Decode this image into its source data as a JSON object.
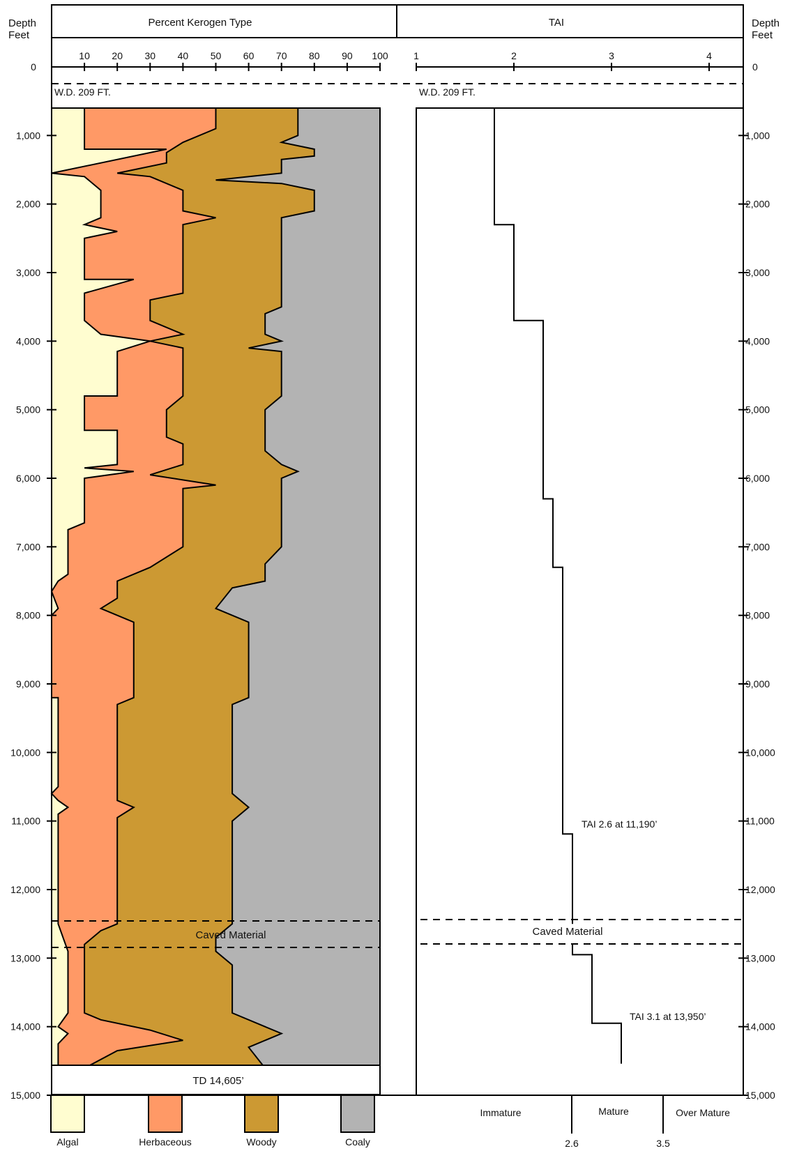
{
  "header": {
    "depth_label_line1": "Depth",
    "depth_label_line2": "Feet",
    "kerogen_title": "Percent Kerogen Type",
    "tai_title": "TAI"
  },
  "annotations": {
    "wd_left": "W.D. 209 FT.",
    "wd_right": "W.D. 209 FT.",
    "caved_left": "Caved Material",
    "caved_right": "Caved Material",
    "td": "TD 14,605’",
    "tai_26": "TAI 2.6 at 11,190’",
    "tai_31": "TAI 3.1 at 13,950’"
  },
  "maturity": {
    "labels": [
      "Immature",
      "Mature",
      "Over Mature"
    ],
    "thresholds": [
      "2.6",
      "3.5"
    ]
  },
  "legend": [
    {
      "label": "Algal",
      "color": "#FFFDD0"
    },
    {
      "label": "Herbaceous",
      "color": "#FF9966"
    },
    {
      "label": "Woody",
      "color": "#CC9933"
    },
    {
      "label": "Coaly",
      "color": "#B3B3B3"
    }
  ],
  "chart_data": [
    {
      "type": "area",
      "title": "Percent Kerogen Type",
      "ylabel": "Depth Feet",
      "stacked": true,
      "x_ticks": [
        "10",
        "20",
        "30",
        "40",
        "50",
        "60",
        "70",
        "80",
        "90",
        "100"
      ],
      "xlim": [
        0,
        100
      ],
      "y_ticks": [
        "0",
        "1,000",
        "2,000",
        "3,000",
        "4,000",
        "5,000",
        "6,000",
        "7,000",
        "8,000",
        "9,000",
        "10,000",
        "11,000",
        "12,000",
        "13,000",
        "14,000",
        "15,000"
      ],
      "ylim": [
        0,
        15000
      ],
      "depth_range": [
        600,
        14605
      ],
      "series": [
        {
          "name": "Algal",
          "color": "#FFFDD0",
          "points": [
            [
              600,
              10
            ],
            [
              1200,
              10
            ],
            [
              1200,
              35
            ],
            [
              1550,
              0
            ],
            [
              1600,
              10
            ],
            [
              1800,
              15
            ],
            [
              2200,
              15
            ],
            [
              2300,
              10
            ],
            [
              2400,
              20
            ],
            [
              2500,
              10
            ],
            [
              3100,
              10
            ],
            [
              3100,
              25
            ],
            [
              3300,
              10
            ],
            [
              3700,
              10
            ],
            [
              3900,
              15
            ],
            [
              4000,
              30
            ],
            [
              4150,
              20
            ],
            [
              4800,
              20
            ],
            [
              4800,
              10
            ],
            [
              5300,
              10
            ],
            [
              5300,
              20
            ],
            [
              5800,
              20
            ],
            [
              5850,
              10
            ],
            [
              5900,
              25
            ],
            [
              6000,
              10
            ],
            [
              6650,
              10
            ],
            [
              6750,
              5
            ],
            [
              7400,
              5
            ],
            [
              7500,
              2
            ],
            [
              7650,
              0
            ],
            [
              7900,
              2
            ],
            [
              8000,
              0
            ],
            [
              9200,
              0
            ],
            [
              9200,
              2
            ],
            [
              10500,
              2
            ],
            [
              10600,
              0
            ],
            [
              10700,
              2
            ],
            [
              10800,
              5
            ],
            [
              10900,
              2
            ],
            [
              12500,
              2
            ],
            [
              12900,
              5
            ],
            [
              13100,
              5
            ],
            [
              13800,
              5
            ],
            [
              14000,
              2
            ],
            [
              14100,
              5
            ],
            [
              14250,
              2
            ],
            [
              14605,
              2
            ]
          ]
        },
        {
          "name": "Herbaceous",
          "color": "#FF9966",
          "points": [
            [
              600,
              50
            ],
            [
              900,
              50
            ],
            [
              1100,
              40
            ],
            [
              1250,
              35
            ],
            [
              1400,
              35
            ],
            [
              1500,
              25
            ],
            [
              1550,
              20
            ],
            [
              1600,
              30
            ],
            [
              1800,
              40
            ],
            [
              2100,
              40
            ],
            [
              2200,
              50
            ],
            [
              2300,
              40
            ],
            [
              2500,
              40
            ],
            [
              3300,
              40
            ],
            [
              3400,
              30
            ],
            [
              3700,
              30
            ],
            [
              3900,
              40
            ],
            [
              4000,
              30
            ],
            [
              4100,
              40
            ],
            [
              4800,
              40
            ],
            [
              5000,
              35
            ],
            [
              5400,
              35
            ],
            [
              5500,
              40
            ],
            [
              5800,
              40
            ],
            [
              5950,
              30
            ],
            [
              6100,
              50
            ],
            [
              6150,
              40
            ],
            [
              7000,
              40
            ],
            [
              7300,
              30
            ],
            [
              7500,
              20
            ],
            [
              7750,
              20
            ],
            [
              7900,
              15
            ],
            [
              8100,
              25
            ],
            [
              9200,
              25
            ],
            [
              9300,
              20
            ],
            [
              10700,
              20
            ],
            [
              10800,
              25
            ],
            [
              10950,
              20
            ],
            [
              12500,
              20
            ],
            [
              12600,
              15
            ],
            [
              12800,
              10
            ],
            [
              12900,
              10
            ],
            [
              13100,
              10
            ],
            [
              13800,
              10
            ],
            [
              13900,
              15
            ],
            [
              14050,
              30
            ],
            [
              14200,
              40
            ],
            [
              14350,
              20
            ],
            [
              14605,
              10
            ]
          ]
        },
        {
          "name": "Woody",
          "color": "#CC9933",
          "points": [
            [
              600,
              75
            ],
            [
              1000,
              75
            ],
            [
              1100,
              70
            ],
            [
              1200,
              80
            ],
            [
              1300,
              80
            ],
            [
              1350,
              70
            ],
            [
              1550,
              70
            ],
            [
              1650,
              50
            ],
            [
              1700,
              70
            ],
            [
              1800,
              80
            ],
            [
              2100,
              80
            ],
            [
              2200,
              70
            ],
            [
              2400,
              70
            ],
            [
              2500,
              70
            ],
            [
              3500,
              70
            ],
            [
              3600,
              65
            ],
            [
              3900,
              65
            ],
            [
              4000,
              70
            ],
            [
              4100,
              60
            ],
            [
              4150,
              70
            ],
            [
              4800,
              70
            ],
            [
              5000,
              65
            ],
            [
              5600,
              65
            ],
            [
              5800,
              70
            ],
            [
              5900,
              75
            ],
            [
              6000,
              70
            ],
            [
              7000,
              70
            ],
            [
              7250,
              65
            ],
            [
              7500,
              65
            ],
            [
              7600,
              55
            ],
            [
              7900,
              50
            ],
            [
              8100,
              60
            ],
            [
              9200,
              60
            ],
            [
              9300,
              55
            ],
            [
              10600,
              55
            ],
            [
              10800,
              60
            ],
            [
              11000,
              55
            ],
            [
              12500,
              55
            ],
            [
              12700,
              50
            ],
            [
              12900,
              50
            ],
            [
              13100,
              55
            ],
            [
              13800,
              55
            ],
            [
              14000,
              65
            ],
            [
              14100,
              70
            ],
            [
              14300,
              60
            ],
            [
              14605,
              65
            ]
          ]
        }
      ]
    },
    {
      "type": "line",
      "title": "TAI",
      "ylabel": "Depth Feet",
      "x_ticks": [
        "1",
        "2",
        "3",
        "4"
      ],
      "xlim": [
        1,
        4.35
      ],
      "ylim": [
        0,
        15000
      ],
      "points": [
        [
          600,
          1.8
        ],
        [
          2300,
          1.8
        ],
        [
          2300,
          2.0
        ],
        [
          3700,
          2.0
        ],
        [
          3700,
          2.3
        ],
        [
          6300,
          2.3
        ],
        [
          6300,
          2.4
        ],
        [
          7300,
          2.4
        ],
        [
          7300,
          2.5
        ],
        [
          11190,
          2.5
        ],
        [
          11190,
          2.6
        ],
        [
          12500,
          2.6
        ]
      ],
      "points_below_cave": [
        [
          12800,
          2.6
        ],
        [
          12950,
          2.6
        ],
        [
          12950,
          2.8
        ],
        [
          13950,
          2.8
        ],
        [
          13950,
          3.1
        ],
        [
          14540,
          3.1
        ]
      ]
    }
  ]
}
